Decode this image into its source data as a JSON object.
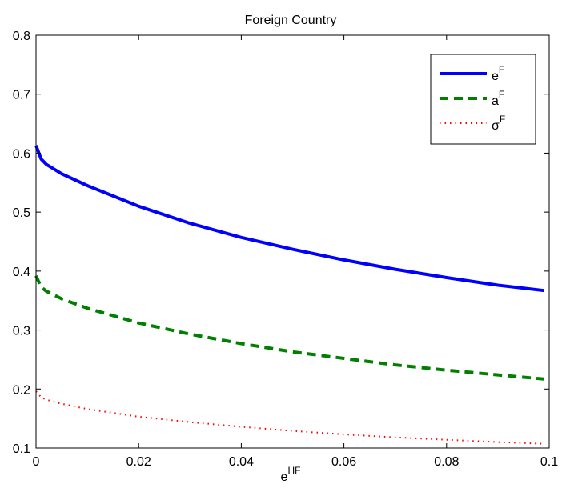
{
  "chart_data": {
    "type": "line",
    "title": "Foreign Country",
    "xlabel": {
      "base": "e",
      "sup": "HF"
    },
    "ylabel": "",
    "xlim": [
      0,
      0.1
    ],
    "ylim": [
      0.1,
      0.8
    ],
    "x_ticks": [
      0,
      0.02,
      0.04,
      0.06,
      0.08,
      0.1
    ],
    "x_tick_labels": [
      "0",
      "0.02",
      "0.04",
      "0.06",
      "0.08",
      "0.1"
    ],
    "y_ticks": [
      0.1,
      0.2,
      0.3,
      0.4,
      0.5,
      0.6,
      0.7,
      0.8
    ],
    "y_tick_labels": [
      "0.1",
      "0.2",
      "0.3",
      "0.4",
      "0.5",
      "0.6",
      "0.7",
      "0.8"
    ],
    "grid": false,
    "legend_position": "top-right",
    "series": [
      {
        "name": "eF",
        "label_base": "e",
        "label_sup": "F",
        "color": "#0000ff",
        "style": "solid",
        "x": [
          0,
          0.001,
          0.002,
          0.005,
          0.01,
          0.02,
          0.03,
          0.04,
          0.05,
          0.06,
          0.07,
          0.08,
          0.09,
          0.099
        ],
        "y": [
          0.613,
          0.59,
          0.581,
          0.565,
          0.545,
          0.51,
          0.481,
          0.457,
          0.437,
          0.419,
          0.403,
          0.389,
          0.376,
          0.367
        ]
      },
      {
        "name": "aF",
        "label_base": "a",
        "label_sup": "F",
        "color": "#007f00",
        "style": "dashed",
        "x": [
          0,
          0.001,
          0.002,
          0.005,
          0.01,
          0.02,
          0.03,
          0.04,
          0.05,
          0.06,
          0.07,
          0.08,
          0.09,
          0.099
        ],
        "y": [
          0.392,
          0.373,
          0.366,
          0.353,
          0.337,
          0.312,
          0.293,
          0.277,
          0.263,
          0.252,
          0.241,
          0.232,
          0.224,
          0.217
        ]
      },
      {
        "name": "σF",
        "label_base": "σ",
        "label_sup": "F",
        "color": "#ff0000",
        "style": "dotted",
        "x": [
          0,
          0.001,
          0.002,
          0.005,
          0.01,
          0.02,
          0.03,
          0.04,
          0.05,
          0.06,
          0.07,
          0.08,
          0.09,
          0.099
        ],
        "y": [
          0.196,
          0.186,
          0.182,
          0.175,
          0.166,
          0.153,
          0.144,
          0.136,
          0.129,
          0.123,
          0.118,
          0.114,
          0.11,
          0.107
        ]
      }
    ]
  }
}
